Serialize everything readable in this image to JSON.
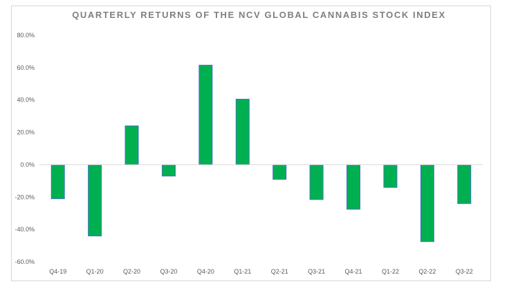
{
  "chart_data": {
    "type": "bar",
    "title": "QUARTERLY RETURNS OF THE NCV GLOBAL CANNABIS STOCK INDEX",
    "xlabel": "",
    "ylabel": "",
    "categories": [
      "Q4-19",
      "Q1-20",
      "Q2-20",
      "Q3-20",
      "Q4-20",
      "Q1-21",
      "Q2-21",
      "Q3-21",
      "Q4-21",
      "Q1-22",
      "Q2-22",
      "Q3-22"
    ],
    "series": [
      {
        "values": [
          -21.0,
          -44.0,
          24.0,
          -7.0,
          61.5,
          40.5,
          -9.0,
          -21.5,
          -27.5,
          -14.0,
          -47.5,
          -24.0
        ]
      }
    ],
    "ylim": [
      -60,
      80
    ],
    "y_ticks": [
      "80.0%",
      "60.0%",
      "40.0%",
      "20.0%",
      "0.0%",
      "-20.0%",
      "-40.0%",
      "-60.0%"
    ],
    "y_tick_values": [
      80,
      60,
      40,
      20,
      0,
      -20,
      -40,
      -60
    ],
    "grid": false,
    "legend": "none",
    "colors": {
      "bar_fill": "#00b050",
      "bar_stroke": "#4472c4",
      "axis": "#d9d9d9",
      "title": "#7f7f7f",
      "tick_text": "#595959"
    }
  }
}
